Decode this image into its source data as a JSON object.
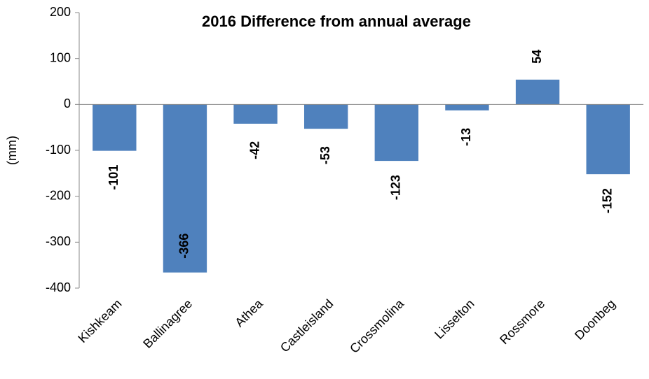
{
  "chart_data": {
    "type": "bar",
    "title": "2016 Difference from annual average",
    "y_label": "(mm)",
    "categories": [
      "Kishkeam",
      "Ballinagree",
      "Athea",
      "Castleisland",
      "Crossmolina",
      "Lisselton",
      "Rossmore",
      "Doonbeg"
    ],
    "values": [
      -101,
      -366,
      -42,
      -53,
      -123,
      -13,
      54,
      -152
    ],
    "color": "#4f81bd",
    "ylim": [
      -400,
      200
    ],
    "yticks": [
      -400,
      -300,
      -200,
      -100,
      0,
      100,
      200
    ],
    "grid": false
  }
}
